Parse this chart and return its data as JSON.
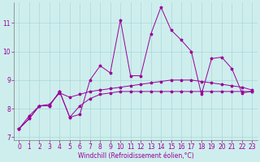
{
  "xlabel": "Windchill (Refroidissement éolien,°C)",
  "bg_color": "#ceeeed",
  "line_color": "#990099",
  "grid_color": "#aad8d8",
  "axis_color": "#777777",
  "xlim": [
    -0.5,
    23.5
  ],
  "ylim": [
    6.9,
    11.7
  ],
  "yticks": [
    7,
    8,
    9,
    10,
    11
  ],
  "xticks": [
    0,
    1,
    2,
    3,
    4,
    5,
    6,
    7,
    8,
    9,
    10,
    11,
    12,
    13,
    14,
    15,
    16,
    17,
    18,
    19,
    20,
    21,
    22,
    23
  ],
  "series1": [
    7.3,
    7.65,
    8.1,
    8.1,
    8.6,
    7.7,
    7.8,
    9.0,
    9.5,
    9.25,
    11.1,
    9.15,
    9.15,
    10.6,
    11.55,
    10.75,
    10.4,
    10.0,
    8.5,
    9.75,
    9.8,
    9.4,
    8.55,
    8.6
  ],
  "series2": [
    7.3,
    7.65,
    8.1,
    8.1,
    8.6,
    7.7,
    8.1,
    8.35,
    8.5,
    8.55,
    8.6,
    8.6,
    8.6,
    8.6,
    8.6,
    8.6,
    8.6,
    8.6,
    8.6,
    8.6,
    8.6,
    8.6,
    8.6,
    8.6
  ],
  "series3": [
    7.3,
    7.75,
    8.1,
    8.15,
    8.55,
    8.4,
    8.5,
    8.6,
    8.65,
    8.7,
    8.75,
    8.8,
    8.85,
    8.9,
    8.95,
    9.0,
    9.0,
    9.0,
    8.95,
    8.9,
    8.85,
    8.8,
    8.75,
    8.65
  ],
  "tick_fontsize": 5.5,
  "xlabel_fontsize": 5.5
}
